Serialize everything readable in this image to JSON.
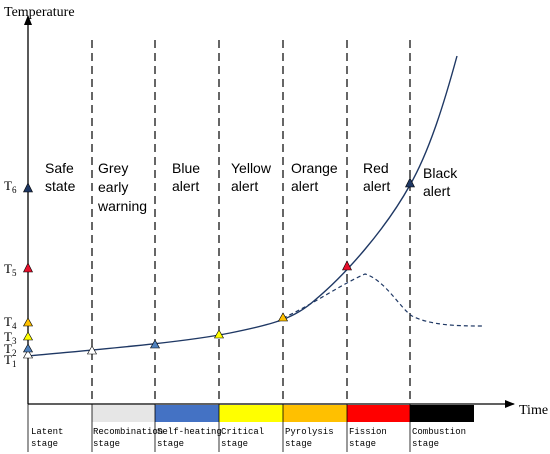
{
  "axes": {
    "y_label": "Temperature",
    "x_label": "Time",
    "y_ticks": [
      {
        "id": "T6",
        "base": "T",
        "sub": "6"
      },
      {
        "id": "T5",
        "base": "T",
        "sub": "5"
      },
      {
        "id": "T4",
        "base": "T",
        "sub": "4"
      },
      {
        "id": "T3",
        "base": "T",
        "sub": "3"
      },
      {
        "id": "T2",
        "base": "T",
        "sub": "2"
      },
      {
        "id": "T1",
        "base": "T",
        "sub": "1"
      }
    ]
  },
  "alerts": [
    {
      "lines": [
        "Safe",
        "state"
      ]
    },
    {
      "lines": [
        "Grey",
        "early",
        "warning"
      ]
    },
    {
      "lines": [
        "Blue",
        "alert"
      ]
    },
    {
      "lines": [
        "Yellow",
        "alert"
      ]
    },
    {
      "lines": [
        "Orange",
        "alert"
      ]
    },
    {
      "lines": [
        "Red",
        "alert"
      ]
    },
    {
      "lines": [
        "Black",
        "alert"
      ]
    }
  ],
  "stages": [
    {
      "lines": [
        "Latent",
        "stage"
      ],
      "color": "#ffffff"
    },
    {
      "lines": [
        "Recombination",
        "stage"
      ],
      "color": "#e6e6e6"
    },
    {
      "lines": [
        "Self-heating",
        "stage"
      ],
      "color": "#4472c4"
    },
    {
      "lines": [
        "Critical",
        "stage"
      ],
      "color": "#ffff00"
    },
    {
      "lines": [
        "Pyrolysis",
        "stage"
      ],
      "color": "#ffc000"
    },
    {
      "lines": [
        "Fission",
        "stage"
      ],
      "color": "#ff0000"
    },
    {
      "lines": [
        "Combustion",
        "stage"
      ],
      "color": "#000000"
    }
  ],
  "markers": [
    {
      "id": "T1-axis",
      "color": "#ffffff"
    },
    {
      "id": "T2-axis",
      "color": "#4f81bd"
    },
    {
      "id": "T3-axis",
      "color": "#ffff00"
    },
    {
      "id": "T4-axis",
      "color": "#ffc000"
    },
    {
      "id": "T5-axis",
      "color": "#e8112d"
    },
    {
      "id": "T6-axis",
      "color": "#1f3864"
    },
    {
      "id": "grey-point",
      "color": "#ffffff"
    },
    {
      "id": "blue-point",
      "color": "#4f81bd"
    },
    {
      "id": "yellow-point",
      "color": "#ffff00"
    },
    {
      "id": "orange-point",
      "color": "#ffc000"
    },
    {
      "id": "red-point",
      "color": "#e8112d"
    },
    {
      "id": "black-point",
      "color": "#1f3864"
    }
  ],
  "colors": {
    "curve": "#1f3864",
    "axis": "#000000"
  }
}
